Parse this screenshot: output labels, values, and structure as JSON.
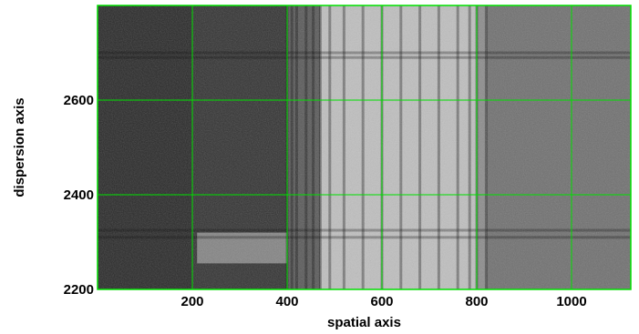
{
  "chart_data": {
    "type": "heatmap",
    "title": "",
    "xlabel": "spatial axis",
    "ylabel": "dispersion axis",
    "xlim": [
      0,
      1125
    ],
    "ylim": [
      2200,
      2800
    ],
    "xticks": [
      200,
      400,
      600,
      800,
      1000
    ],
    "yticks": [
      2200,
      2400,
      2600
    ],
    "xtick_labels": [
      "200",
      "400",
      "600",
      "800",
      "1000"
    ],
    "ytick_labels": [
      "2200",
      "2400",
      "2600"
    ],
    "grid": true,
    "grid_color": "#00e000",
    "colormap": "grayscale",
    "regions": [
      {
        "x": [
          0,
          200
        ],
        "level": 0.16
      },
      {
        "x": [
          200,
          400
        ],
        "level": 0.2
      },
      {
        "x": [
          400,
          470
        ],
        "level": 0.35
      },
      {
        "x": [
          470,
          800
        ],
        "level": 0.75
      },
      {
        "x": [
          800,
          820
        ],
        "level": 0.55
      },
      {
        "x": [
          820,
          1125
        ],
        "level": 0.44
      }
    ],
    "patches": [
      {
        "x": [
          210,
          400
        ],
        "y": [
          2255,
          2320
        ],
        "level": 0.6
      }
    ],
    "row_bands": [
      2310,
      2325,
      2690,
      2700
    ],
    "column_bands": [
      400,
      410,
      420,
      440,
      455,
      470,
      490,
      520,
      560,
      600,
      640,
      680,
      720,
      760,
      785,
      800,
      820
    ]
  }
}
